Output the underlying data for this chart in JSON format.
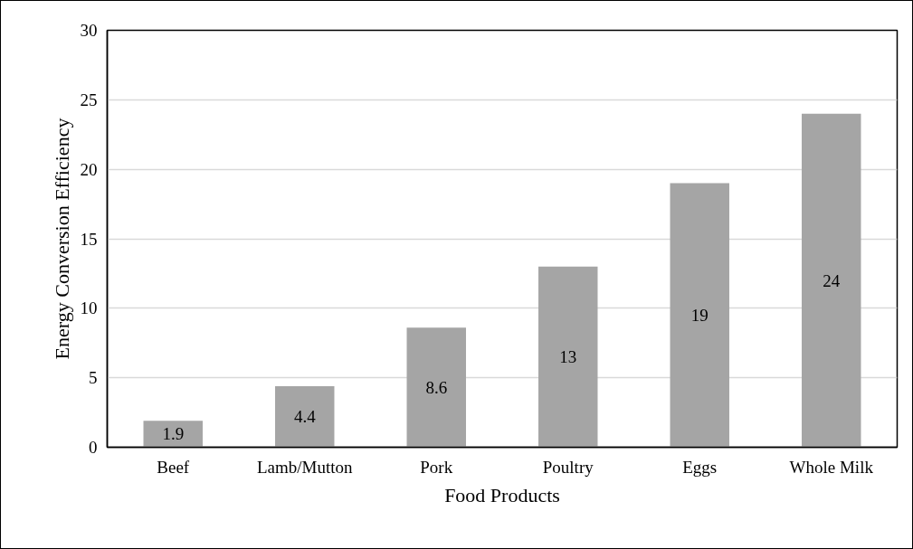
{
  "chart_data": {
    "type": "bar",
    "xlabel": "Food Products",
    "ylabel": "Energy Conversion Efficiency",
    "categories": [
      "Beef",
      "Lamb/Mutton",
      "Pork",
      "Poultry",
      "Eggs",
      "Whole Milk"
    ],
    "values": [
      1.9,
      4.4,
      8.6,
      13,
      19,
      24
    ],
    "color": "#a5a5a5",
    "ylim": [
      0,
      30
    ],
    "yticks": [
      0,
      5,
      10,
      15,
      20,
      25,
      30
    ],
    "grid": "y",
    "data_labels": true
  }
}
